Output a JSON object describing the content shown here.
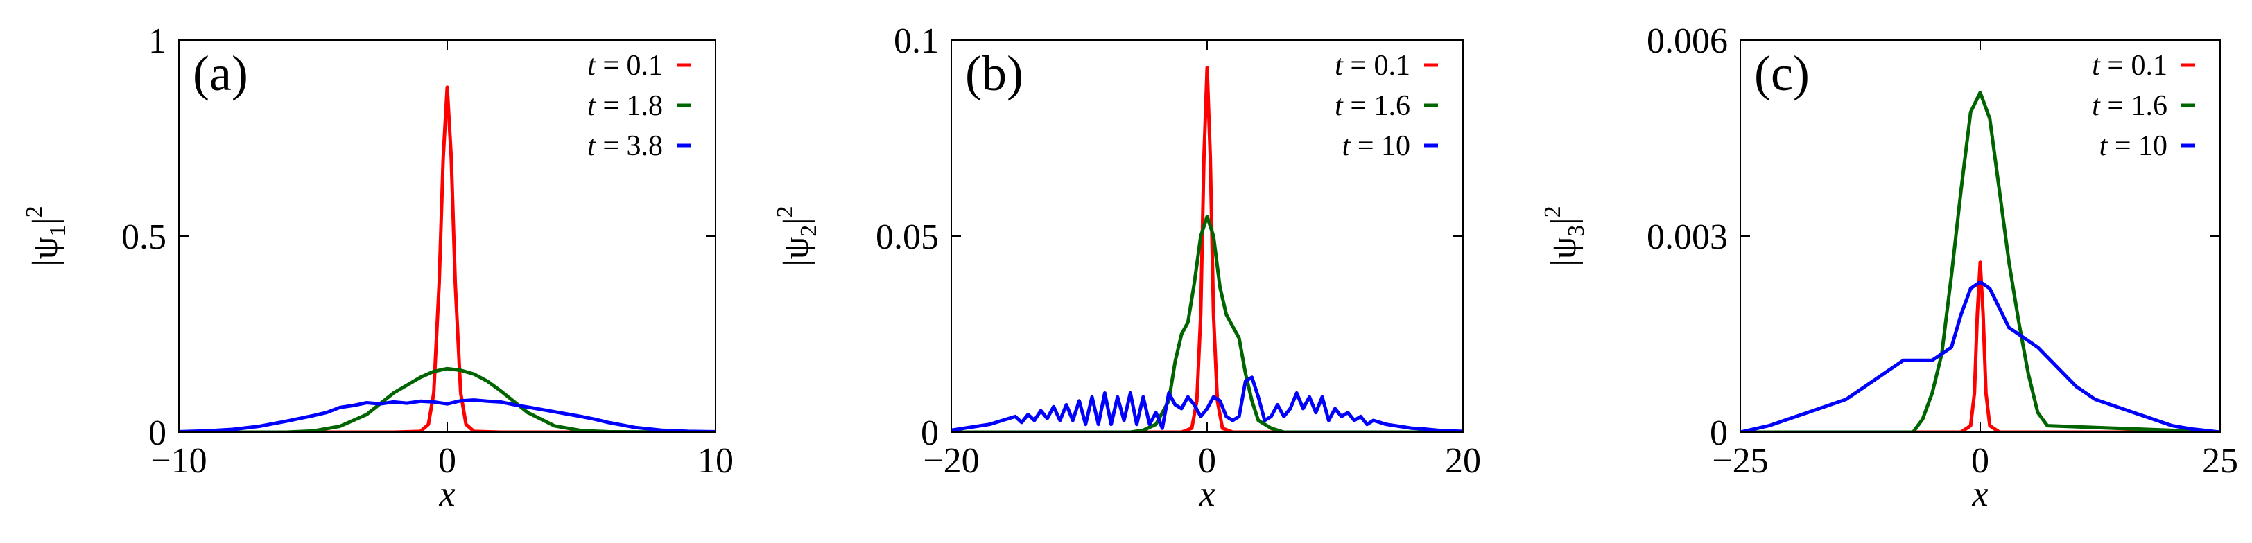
{
  "chart_data": [
    {
      "type": "line",
      "panel_label": "(a)",
      "xlabel": "x",
      "ylabel": "|ψ1|2",
      "ylabel_parts": {
        "open": "|ψ",
        "sub": "1",
        "close": "|",
        "sup": "2"
      },
      "xlim": [
        -10,
        10
      ],
      "ylim": [
        0,
        1
      ],
      "xticks": [
        -10,
        0,
        10
      ],
      "xtick_labels": [
        "−10",
        "0",
        "10"
      ],
      "yticks": [
        0,
        0.5,
        1
      ],
      "ytick_labels": [
        "0",
        "0.5",
        "1"
      ],
      "legend_position": "top-right",
      "series": [
        {
          "name": "t = 0.1",
          "t_value": "0.1",
          "color": "#ff0000",
          "x": [
            -10,
            -2,
            -1,
            -0.7,
            -0.5,
            -0.3,
            -0.15,
            0,
            0.15,
            0.3,
            0.5,
            0.7,
            1,
            2,
            10
          ],
          "y": [
            0,
            0,
            0.002,
            0.02,
            0.1,
            0.38,
            0.7,
            0.88,
            0.7,
            0.38,
            0.1,
            0.02,
            0.002,
            0,
            0
          ]
        },
        {
          "name": "t = 1.8",
          "t_value": "1.8",
          "color": "#006400",
          "x": [
            -10,
            -6,
            -5,
            -4,
            -3,
            -2,
            -1.5,
            -1,
            -0.5,
            0,
            0.5,
            1,
            1.5,
            2,
            3,
            4,
            5,
            6,
            10
          ],
          "y": [
            0,
            0,
            0.003,
            0.015,
            0.045,
            0.1,
            0.12,
            0.14,
            0.155,
            0.162,
            0.158,
            0.148,
            0.13,
            0.105,
            0.05,
            0.016,
            0.004,
            0.001,
            0
          ]
        },
        {
          "name": "t = 3.8",
          "t_value": "3.8",
          "color": "#0000ff",
          "x": [
            -10,
            -9,
            -8,
            -7,
            -6,
            -5,
            -4.5,
            -4,
            -3.5,
            -3,
            -2.5,
            -2,
            -1.5,
            -1,
            -0.5,
            0,
            0.5,
            1,
            1.5,
            2,
            2.5,
            3,
            3.5,
            4,
            4.5,
            5,
            5.5,
            6,
            7,
            8,
            9,
            10
          ],
          "y": [
            0.001,
            0.003,
            0.007,
            0.015,
            0.028,
            0.042,
            0.05,
            0.063,
            0.068,
            0.075,
            0.072,
            0.077,
            0.074,
            0.079,
            0.077,
            0.072,
            0.08,
            0.082,
            0.079,
            0.077,
            0.07,
            0.064,
            0.058,
            0.052,
            0.046,
            0.04,
            0.033,
            0.025,
            0.012,
            0.005,
            0.002,
            0.001
          ]
        }
      ]
    },
    {
      "type": "line",
      "panel_label": "(b)",
      "xlabel": "x",
      "ylabel": "|ψ2|2",
      "ylabel_parts": {
        "open": "|ψ",
        "sub": "2",
        "close": "|",
        "sup": "2"
      },
      "xlim": [
        -20,
        20
      ],
      "ylim": [
        0,
        0.1
      ],
      "xticks": [
        -20,
        0,
        20
      ],
      "xtick_labels": [
        "−20",
        "0",
        "20"
      ],
      "yticks": [
        0,
        0.05,
        0.1
      ],
      "ytick_labels": [
        "0",
        "0.05",
        "0.1"
      ],
      "legend_position": "top-right",
      "series": [
        {
          "name": "t = 0.1",
          "t_value": "0.1",
          "color": "#ff0000",
          "x": [
            -20,
            -2,
            -1.2,
            -0.8,
            -0.5,
            -0.25,
            0,
            0.25,
            0.5,
            0.8,
            1.2,
            2,
            20
          ],
          "y": [
            0,
            0,
            0.001,
            0.008,
            0.03,
            0.07,
            0.093,
            0.07,
            0.03,
            0.008,
            0.001,
            0,
            0
          ]
        },
        {
          "name": "t = 1.6",
          "t_value": "1.6",
          "color": "#006400",
          "x": [
            -20,
            -6,
            -5,
            -4,
            -3,
            -2.5,
            -2,
            -1.5,
            -1,
            -0.5,
            0,
            0.5,
            1,
            1.5,
            2,
            2.5,
            3,
            3.5,
            4,
            5,
            6,
            20
          ],
          "y": [
            0,
            0,
            0.0005,
            0.002,
            0.008,
            0.018,
            0.025,
            0.028,
            0.038,
            0.05,
            0.055,
            0.05,
            0.037,
            0.03,
            0.027,
            0.024,
            0.015,
            0.008,
            0.003,
            0.001,
            0,
            0
          ]
        },
        {
          "name": "t = 10",
          "t_value": "10",
          "color": "#0000ff",
          "x": [
            -20,
            -19,
            -18,
            -17,
            -16,
            -15,
            -14.5,
            -14,
            -13.5,
            -13,
            -12.5,
            -12,
            -11.5,
            -11,
            -10.5,
            -10,
            -9.5,
            -9,
            -8.5,
            -8,
            -7.5,
            -7,
            -6.5,
            -6,
            -5.5,
            -5,
            -4.5,
            -4,
            -3.5,
            -3,
            -2.5,
            -2,
            -1.5,
            -1,
            -0.5,
            0,
            0.5,
            1,
            1.5,
            2,
            2.5,
            3,
            3.5,
            4,
            4.5,
            5,
            5.5,
            6,
            6.5,
            7,
            7.5,
            8,
            8.5,
            9,
            9.5,
            10,
            10.5,
            11,
            11.5,
            12,
            12.5,
            13,
            14,
            15,
            16,
            17,
            18,
            19,
            20
          ],
          "y": [
            0.0005,
            0.001,
            0.0015,
            0.002,
            0.003,
            0.004,
            0.0025,
            0.0045,
            0.003,
            0.0055,
            0.0035,
            0.0065,
            0.003,
            0.007,
            0.003,
            0.008,
            0.002,
            0.009,
            0.002,
            0.01,
            0.002,
            0.009,
            0.003,
            0.01,
            0.002,
            0.009,
            0.002,
            0.005,
            0.001,
            0.01,
            0.007,
            0.006,
            0.009,
            0.007,
            0.004,
            0.006,
            0.009,
            0.008,
            0.004,
            0.003,
            0.004,
            0.013,
            0.014,
            0.009,
            0.003,
            0.004,
            0.007,
            0.004,
            0.006,
            0.01,
            0.006,
            0.009,
            0.005,
            0.009,
            0.003,
            0.006,
            0.004,
            0.005,
            0.003,
            0.004,
            0.002,
            0.003,
            0.002,
            0.0015,
            0.001,
            0.0008,
            0.0005,
            0.0003,
            0.0002
          ]
        }
      ]
    },
    {
      "type": "line",
      "panel_label": "(c)",
      "xlabel": "x",
      "ylabel": "|ψ3|2",
      "ylabel_parts": {
        "open": "|ψ",
        "sub": "3",
        "close": "|",
        "sup": "2"
      },
      "xlim": [
        -25,
        25
      ],
      "ylim": [
        0,
        0.006
      ],
      "xticks": [
        -25,
        0,
        25
      ],
      "xtick_labels": [
        "−25",
        "0",
        "25"
      ],
      "yticks": [
        0,
        0.003,
        0.006
      ],
      "ytick_labels": [
        "0",
        "0.003",
        "0.006"
      ],
      "legend_position": "top-right",
      "series": [
        {
          "name": "t = 0.1",
          "t_value": "0.1",
          "color": "#ff0000",
          "x": [
            -25,
            -2,
            -1,
            -0.6,
            -0.3,
            0,
            0.3,
            0.6,
            1,
            2,
            25
          ],
          "y": [
            0,
            0,
            0.0001,
            0.0006,
            0.0018,
            0.0026,
            0.0018,
            0.0006,
            0.0001,
            0,
            0
          ]
        },
        {
          "name": "t = 1.6",
          "t_value": "1.6",
          "color": "#006400",
          "x": [
            -25,
            -7,
            -6,
            -5,
            -4,
            -3,
            -2,
            -1,
            0,
            1,
            2,
            3,
            4,
            5,
            6,
            7,
            25
          ],
          "y": [
            0,
            0,
            0.0002,
            0.0006,
            0.0012,
            0.0024,
            0.0037,
            0.0049,
            0.0052,
            0.0048,
            0.0037,
            0.0026,
            0.0017,
            0.0009,
            0.0003,
            0.0001,
            0
          ]
        },
        {
          "name": "t = 10",
          "t_value": "10",
          "color": "#0000ff",
          "x": [
            -25,
            -22,
            -20,
            -18,
            -16,
            -14,
            -12,
            -10,
            -8,
            -6,
            -5,
            -4,
            -3,
            -2,
            -1,
            0,
            1,
            2,
            3,
            4,
            5,
            6,
            8,
            10,
            12,
            14,
            16,
            18,
            20,
            22,
            25
          ],
          "y": [
            0,
            0.0001,
            0.0002,
            0.0003,
            0.0004,
            0.0005,
            0.0007,
            0.0009,
            0.0011,
            0.0011,
            0.0011,
            0.0012,
            0.0013,
            0.0018,
            0.0022,
            0.0023,
            0.0022,
            0.0019,
            0.0016,
            0.0015,
            0.0014,
            0.0013,
            0.001,
            0.0007,
            0.0005,
            0.0004,
            0.0003,
            0.0002,
            0.0001,
            5e-05,
            0
          ]
        }
      ]
    }
  ]
}
